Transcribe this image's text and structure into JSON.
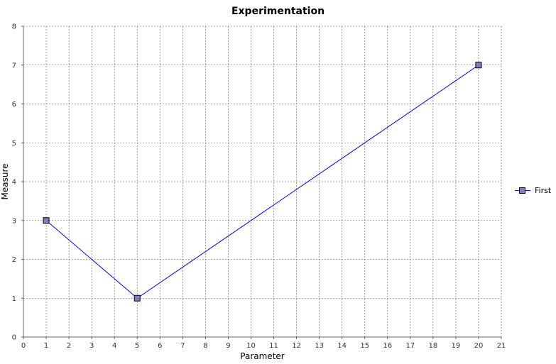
{
  "chart_data": {
    "type": "line",
    "title": "Experimentation",
    "xlabel": "Parameter",
    "ylabel": "Measure",
    "xlim": [
      0,
      21
    ],
    "ylim": [
      0,
      8
    ],
    "xticks": [
      0,
      1,
      2,
      3,
      4,
      5,
      6,
      7,
      8,
      9,
      10,
      11,
      12,
      13,
      14,
      15,
      16,
      17,
      18,
      19,
      20,
      21
    ],
    "yticks": [
      0,
      1,
      2,
      3,
      4,
      5,
      6,
      7,
      8
    ],
    "grid": true,
    "legend_position": "right",
    "series": [
      {
        "name": "First",
        "color": "#0000ff",
        "marker_color": "#7f7fbf",
        "x": [
          1,
          5,
          20
        ],
        "y": [
          3,
          1,
          7
        ]
      }
    ]
  }
}
